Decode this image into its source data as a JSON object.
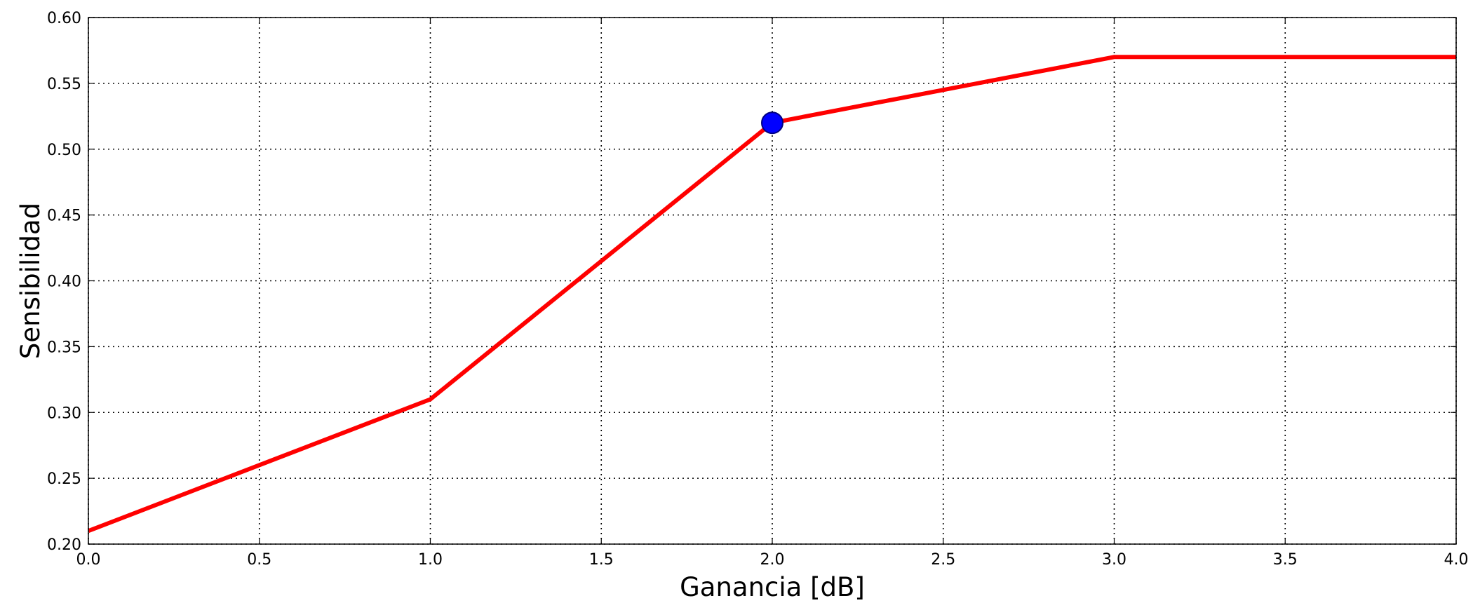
{
  "chart_data": {
    "type": "line",
    "title": "",
    "xlabel": "Ganancia [dB]",
    "ylabel": "Sensibilidad",
    "xlim": [
      0.0,
      4.0
    ],
    "ylim": [
      0.2,
      0.6
    ],
    "grid": true,
    "xticks": [
      "0.0",
      "0.5",
      "1.0",
      "1.5",
      "2.0",
      "2.5",
      "3.0",
      "3.5",
      "4.0"
    ],
    "yticks": [
      "0.20",
      "0.25",
      "0.30",
      "0.35",
      "0.40",
      "0.45",
      "0.50",
      "0.55",
      "0.60"
    ],
    "series": [
      {
        "color": "#ff0000",
        "x": [
          0.0,
          1.0,
          2.0,
          3.0,
          4.0
        ],
        "y": [
          0.21,
          0.31,
          0.52,
          0.57,
          0.57
        ]
      }
    ],
    "markers": [
      {
        "x": 2.0,
        "y": 0.52,
        "color": "#0000ff",
        "edge_color": "#000080"
      }
    ]
  }
}
